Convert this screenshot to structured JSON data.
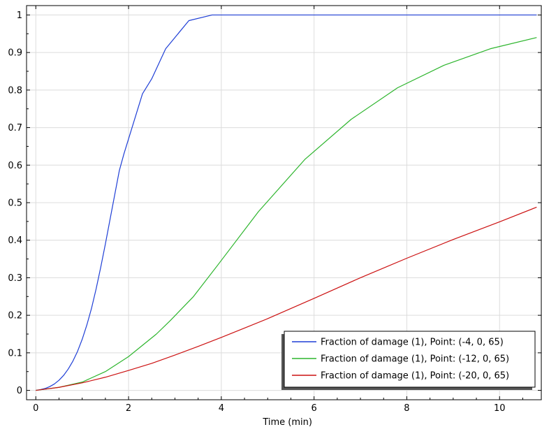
{
  "chart_data": {
    "type": "line",
    "title": "",
    "xlabel": "Time (min)",
    "ylabel": "",
    "xlim": [
      -0.2,
      10.9
    ],
    "ylim": [
      -0.025,
      1.025
    ],
    "xticks": [
      0,
      2,
      4,
      6,
      8,
      10
    ],
    "yticks": [
      0,
      0.1,
      0.2,
      0.3,
      0.4,
      0.5,
      0.6,
      0.7,
      0.8,
      0.9,
      1
    ],
    "xtick_labels": [
      "0",
      "2",
      "4",
      "6",
      "8",
      "10"
    ],
    "ytick_labels": [
      "0",
      "0.1",
      "0.2",
      "0.3",
      "0.4",
      "0.5",
      "0.6",
      "0.7",
      "0.8",
      "0.9",
      "1"
    ],
    "grid": true,
    "legend_position": "bottom-right",
    "series": [
      {
        "name": "Fraction of damage (1), Point: (-4, 0, 65)",
        "color": "#1f3fd6",
        "x": [
          0,
          0.1,
          0.2,
          0.3,
          0.4,
          0.5,
          0.6,
          0.7,
          0.8,
          0.9,
          1.0,
          1.1,
          1.2,
          1.3,
          1.4,
          1.5,
          1.6,
          1.7,
          1.8,
          1.9,
          2.0,
          2.1,
          2.2,
          2.3,
          2.5,
          2.8,
          3.3,
          3.8,
          4.5,
          6,
          8,
          10,
          10.8
        ],
        "y": [
          0,
          0.002,
          0.005,
          0.01,
          0.017,
          0.027,
          0.04,
          0.057,
          0.078,
          0.104,
          0.136,
          0.174,
          0.218,
          0.27,
          0.328,
          0.39,
          0.455,
          0.52,
          0.585,
          0.63,
          0.67,
          0.71,
          0.75,
          0.79,
          0.83,
          0.91,
          0.985,
          1.0,
          1.0,
          1.0,
          1.0,
          1.0,
          1.0
        ]
      },
      {
        "name": "Fraction of damage (1), Point: (-12, 0, 65)",
        "color": "#2db52d",
        "x": [
          0,
          0.5,
          1.0,
          1.5,
          2.0,
          2.3,
          2.6,
          2.9,
          3.4,
          3.9,
          4.8,
          5.8,
          6.8,
          7.8,
          8.8,
          9.8,
          10.8
        ],
        "y": [
          0,
          0.008,
          0.022,
          0.05,
          0.09,
          0.12,
          0.15,
          0.186,
          0.25,
          0.33,
          0.476,
          0.615,
          0.722,
          0.806,
          0.866,
          0.91,
          0.94
        ]
      },
      {
        "name": "Fraction of damage (1), Point: (-20, 0, 65)",
        "color": "#cc1111",
        "x": [
          0,
          0.5,
          1.0,
          1.5,
          2.0,
          2.5,
          3.0,
          3.5,
          4.0,
          4.5,
          5.0,
          6.0,
          7.0,
          8.0,
          9.0,
          10.0,
          10.8
        ],
        "y": [
          0,
          0.008,
          0.02,
          0.035,
          0.053,
          0.072,
          0.094,
          0.117,
          0.141,
          0.166,
          0.191,
          0.245,
          0.3,
          0.352,
          0.402,
          0.449,
          0.488
        ]
      }
    ]
  }
}
